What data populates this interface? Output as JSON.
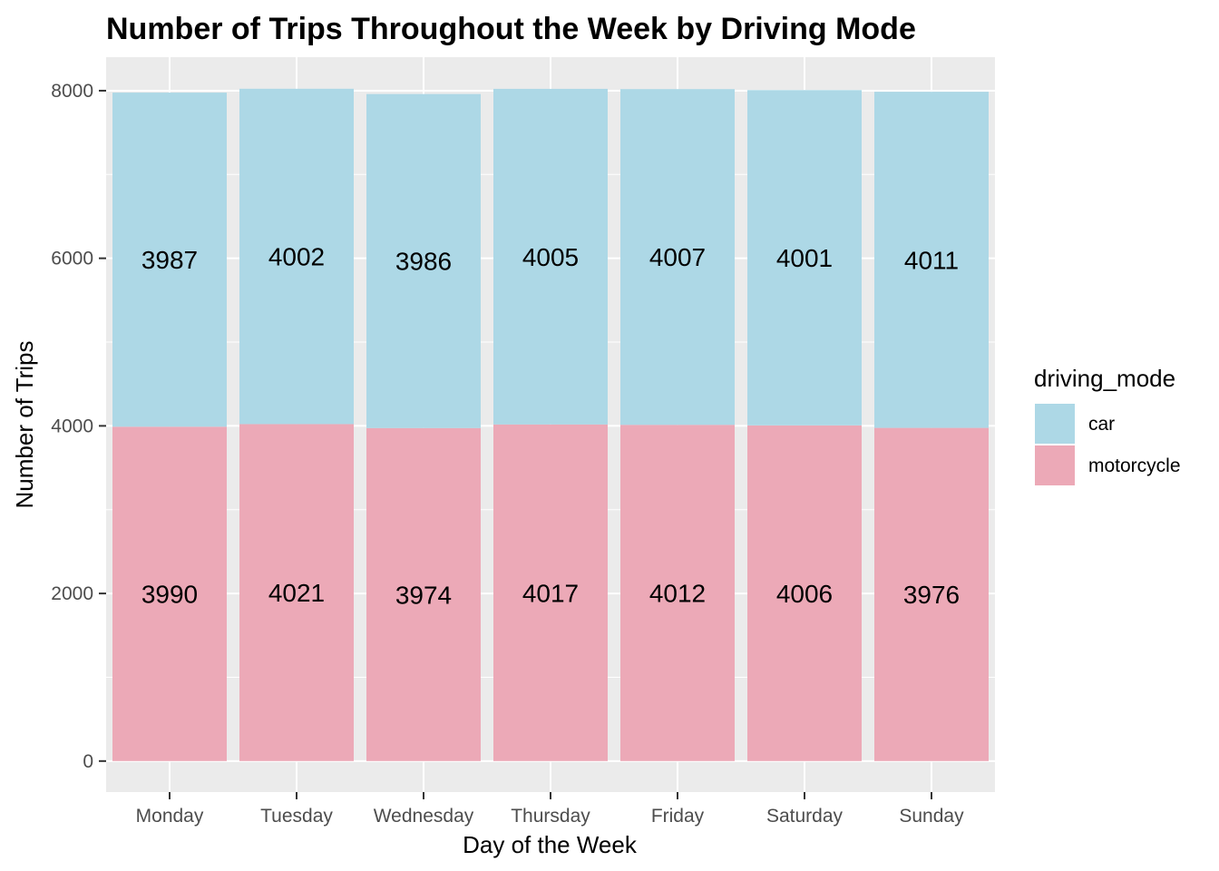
{
  "chart_data": {
    "type": "bar",
    "stacked": true,
    "title": "Number of Trips Throughout the Week by Driving Mode",
    "xlabel": "Day of the Week",
    "ylabel": "Number of Trips",
    "categories": [
      "Monday",
      "Tuesday",
      "Wednesday",
      "Thursday",
      "Friday",
      "Saturday",
      "Sunday"
    ],
    "series": [
      {
        "name": "motorcycle",
        "color": "#ECA9B7",
        "values": [
          3990,
          4021,
          3974,
          4017,
          4012,
          4006,
          3976
        ]
      },
      {
        "name": "car",
        "color": "#ADD8E6",
        "values": [
          3987,
          4002,
          3986,
          4005,
          4007,
          4001,
          4011
        ]
      }
    ],
    "legend": {
      "title": "driving_mode",
      "position": "right",
      "order": [
        "car",
        "motorcycle"
      ]
    },
    "yticks": [
      0,
      2000,
      4000,
      6000,
      8000
    ],
    "ylim": [
      -370,
      8400
    ],
    "grid": true,
    "panel_background": "#EBEBEB"
  }
}
